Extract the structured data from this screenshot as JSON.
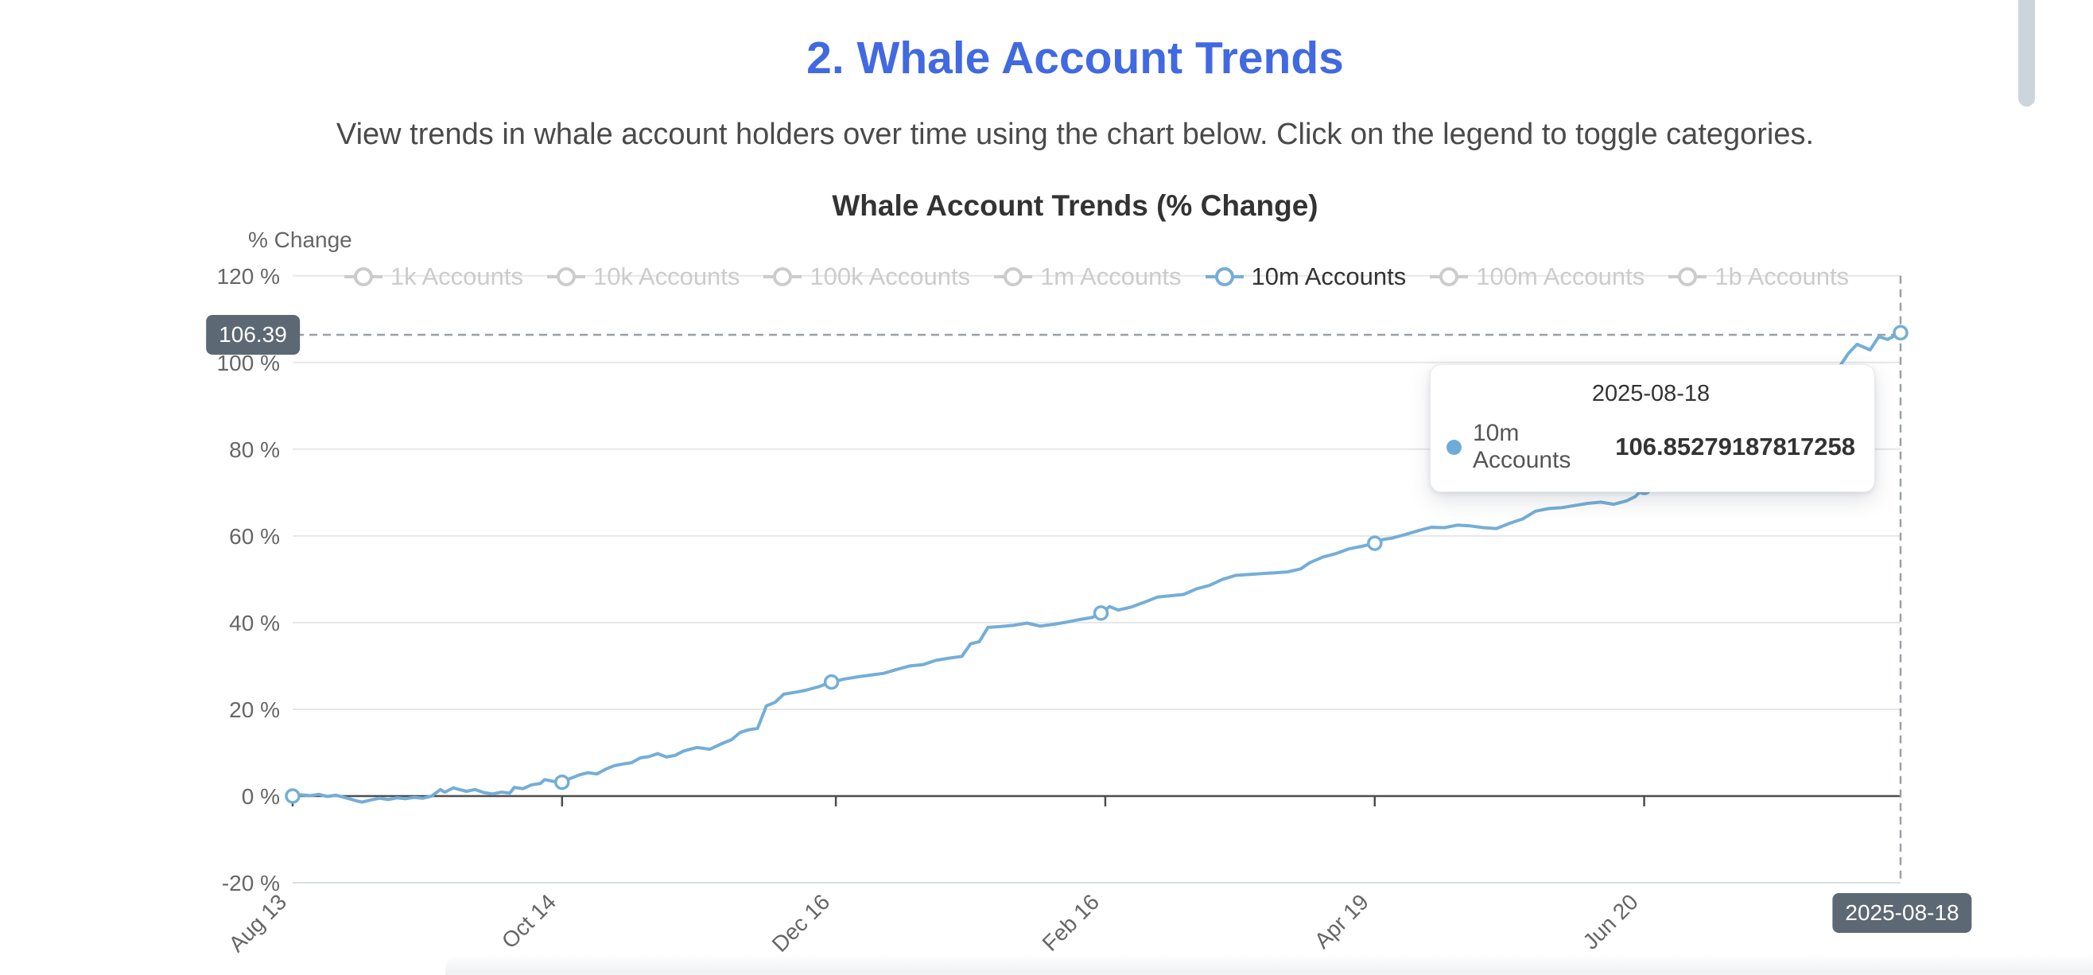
{
  "page": {
    "title": "2. Whale Account Trends",
    "subtitle": "View trends in whale account holders over time using the chart below. Click on the legend to toggle categories."
  },
  "colors": {
    "accent_blue": "#4169e1",
    "series_blue": "#74aed6",
    "legend_inactive": "#cccccc",
    "legend_active_text": "#333333",
    "grid_line": "#e7e7e7",
    "zero_line": "#4d4d4d",
    "bottom_line": "#d9dee6",
    "crosshair": "#9aa0a6",
    "badge_bg": "#5c6873",
    "axis_text": "#666666"
  },
  "chart_data": {
    "type": "line",
    "title": "Whale Account Trends (% Change)",
    "ylabel": "% Change",
    "xlabel": "",
    "y_unit": " %",
    "ylim": [
      -20,
      120
    ],
    "y_ticks": [
      -20,
      0,
      20,
      40,
      60,
      80,
      100,
      120
    ],
    "x_tick_labels": [
      "Aug 13",
      "Oct 14",
      "Dec 16",
      "Feb 16",
      "Apr 19",
      "Jun 20"
    ],
    "x_tick_days": [
      0,
      62,
      125,
      187,
      249,
      311
    ],
    "x_total_days": 370,
    "grid": true,
    "legend_position": "top",
    "legend": [
      {
        "label": "1k Accounts",
        "active": false
      },
      {
        "label": "10k Accounts",
        "active": false
      },
      {
        "label": "100k Accounts",
        "active": false
      },
      {
        "label": "1m Accounts",
        "active": false
      },
      {
        "label": "10m Accounts",
        "active": true
      },
      {
        "label": "100m Accounts",
        "active": false
      },
      {
        "label": "1b Accounts",
        "active": false
      }
    ],
    "series": [
      {
        "name": "10m Accounts",
        "color": "#74aed6",
        "visible": true,
        "marker_days": [
          0,
          62,
          125,
          187,
          249,
          311,
          370
        ],
        "points": [
          [
            0,
            0
          ],
          [
            2,
            0.3
          ],
          [
            4,
            0.1
          ],
          [
            6,
            0.4
          ],
          [
            8,
            -0.1
          ],
          [
            10,
            0.2
          ],
          [
            13,
            -0.6
          ],
          [
            15,
            -1.2
          ],
          [
            16,
            -1.4
          ],
          [
            18,
            -0.9
          ],
          [
            20,
            -0.5
          ],
          [
            22,
            -0.8
          ],
          [
            24,
            -0.4
          ],
          [
            26,
            -0.6
          ],
          [
            28,
            -0.3
          ],
          [
            30,
            -0.5
          ],
          [
            32,
            0
          ],
          [
            34,
            1.5
          ],
          [
            35,
            0.9
          ],
          [
            37,
            1.9
          ],
          [
            38,
            1.6
          ],
          [
            40,
            1.1
          ],
          [
            42,
            1.5
          ],
          [
            44,
            0.8
          ],
          [
            46,
            0.5
          ],
          [
            48,
            0.9
          ],
          [
            50,
            0.7
          ],
          [
            51,
            2.0
          ],
          [
            53,
            1.7
          ],
          [
            55,
            2.6
          ],
          [
            57,
            2.9
          ],
          [
            58,
            3.8
          ],
          [
            60,
            3.4
          ],
          [
            62,
            3.2
          ],
          [
            64,
            4.1
          ],
          [
            66,
            4.9
          ],
          [
            68,
            5.4
          ],
          [
            70,
            5.1
          ],
          [
            72,
            6.2
          ],
          [
            74,
            7.0
          ],
          [
            76,
            7.4
          ],
          [
            78,
            7.7
          ],
          [
            80,
            8.8
          ],
          [
            82,
            9.1
          ],
          [
            84,
            9.8
          ],
          [
            86,
            9.0
          ],
          [
            88,
            9.4
          ],
          [
            90,
            10.4
          ],
          [
            93,
            11.2
          ],
          [
            96,
            10.8
          ],
          [
            99,
            12.2
          ],
          [
            101,
            13.0
          ],
          [
            103,
            14.7
          ],
          [
            105,
            15.3
          ],
          [
            107,
            15.6
          ],
          [
            109,
            20.8
          ],
          [
            111,
            21.6
          ],
          [
            113,
            23.5
          ],
          [
            116,
            24.0
          ],
          [
            118,
            24.4
          ],
          [
            121,
            25.2
          ],
          [
            124,
            26.3
          ],
          [
            127,
            27.0
          ],
          [
            130,
            27.5
          ],
          [
            133,
            27.9
          ],
          [
            136,
            28.3
          ],
          [
            139,
            29.2
          ],
          [
            142,
            30.0
          ],
          [
            145,
            30.3
          ],
          [
            148,
            31.3
          ],
          [
            151,
            31.8
          ],
          [
            154,
            32.2
          ],
          [
            156,
            35.1
          ],
          [
            158,
            35.6
          ],
          [
            160,
            38.9
          ],
          [
            163,
            39.1
          ],
          [
            166,
            39.4
          ],
          [
            169,
            39.9
          ],
          [
            172,
            39.2
          ],
          [
            175,
            39.6
          ],
          [
            178,
            40.1
          ],
          [
            181,
            40.7
          ],
          [
            184,
            41.2
          ],
          [
            186,
            42.2
          ],
          [
            188,
            43.7
          ],
          [
            190,
            42.9
          ],
          [
            193,
            43.6
          ],
          [
            196,
            44.7
          ],
          [
            199,
            45.9
          ],
          [
            202,
            46.2
          ],
          [
            205,
            46.5
          ],
          [
            208,
            47.8
          ],
          [
            211,
            48.6
          ],
          [
            214,
            50.0
          ],
          [
            217,
            50.9
          ],
          [
            220,
            51.1
          ],
          [
            223,
            51.3
          ],
          [
            226,
            51.5
          ],
          [
            229,
            51.7
          ],
          [
            232,
            52.4
          ],
          [
            234,
            53.8
          ],
          [
            237,
            55.1
          ],
          [
            240,
            55.9
          ],
          [
            243,
            57.0
          ],
          [
            246,
            57.6
          ],
          [
            249,
            58.3
          ],
          [
            251,
            59.2
          ],
          [
            253,
            59.5
          ],
          [
            256,
            60.3
          ],
          [
            259,
            61.2
          ],
          [
            262,
            62.0
          ],
          [
            265,
            61.9
          ],
          [
            268,
            62.5
          ],
          [
            271,
            62.3
          ],
          [
            274,
            61.9
          ],
          [
            277,
            61.7
          ],
          [
            280,
            62.9
          ],
          [
            283,
            63.9
          ],
          [
            286,
            65.7
          ],
          [
            289,
            66.3
          ],
          [
            292,
            66.5
          ],
          [
            295,
            67.0
          ],
          [
            298,
            67.5
          ],
          [
            301,
            67.8
          ],
          [
            304,
            67.3
          ],
          [
            307,
            68.1
          ],
          [
            309,
            69.1
          ],
          [
            311,
            71.2
          ],
          [
            313,
            74.0
          ],
          [
            315,
            75.2
          ],
          [
            317,
            76.1
          ],
          [
            321,
            78.6
          ],
          [
            326,
            82.2
          ],
          [
            331,
            85.6
          ],
          [
            336,
            88.6
          ],
          [
            341,
            91.6
          ],
          [
            346,
            94.1
          ],
          [
            351,
            96.2
          ],
          [
            354,
            97.6
          ],
          [
            356,
            99.1
          ],
          [
            358,
            102.1
          ],
          [
            360,
            104.2
          ],
          [
            363,
            102.9
          ],
          [
            365,
            106.0
          ],
          [
            367,
            105.3
          ],
          [
            370,
            106.85279187817258
          ]
        ]
      }
    ],
    "crosshair": {
      "y_badge": "106.39",
      "x_badge": "2025-08-18"
    },
    "tooltip": {
      "title": "2025-08-18",
      "series": "10m Accounts",
      "value": "106.85279187817258",
      "bullet_color": "#6fabd8"
    }
  }
}
